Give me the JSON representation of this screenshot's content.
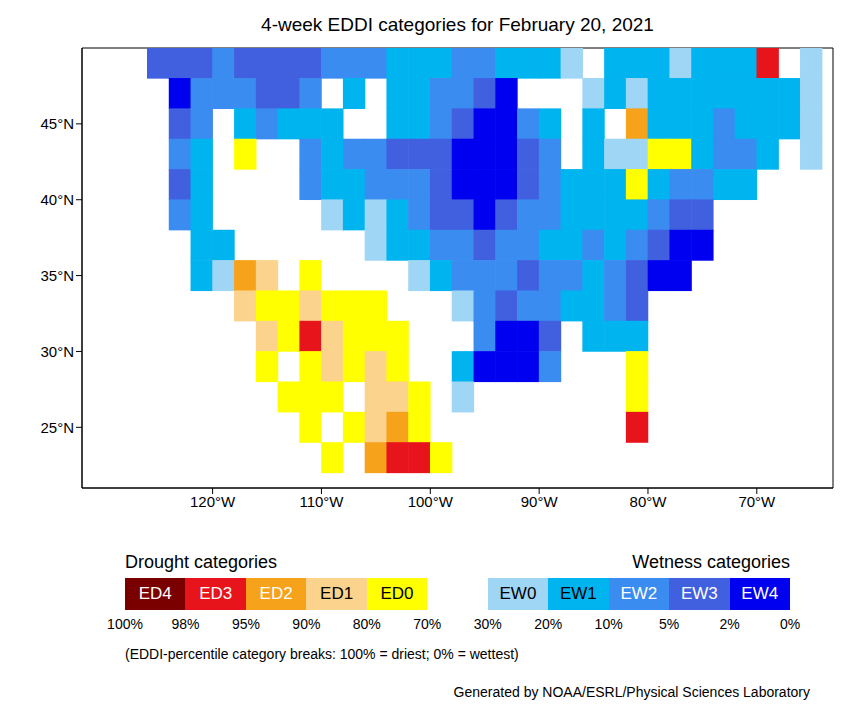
{
  "chart_data": {
    "type": "map",
    "title": "4-week EDDI categories for February 20, 2021",
    "xlim": [
      -132,
      -63
    ],
    "xticks": [
      {
        "value": -120,
        "label": "120°W"
      },
      {
        "value": -110,
        "label": "110°W"
      },
      {
        "value": -100,
        "label": "100°W"
      },
      {
        "value": -90,
        "label": "90°W"
      },
      {
        "value": -80,
        "label": "80°W"
      },
      {
        "value": -70,
        "label": "70°W"
      }
    ],
    "ylim": [
      21,
      50
    ],
    "yticks": [
      {
        "value": 25,
        "label": "25°N"
      },
      {
        "value": 30,
        "label": "30°N"
      },
      {
        "value": 35,
        "label": "35°N"
      },
      {
        "value": 40,
        "label": "40°N"
      },
      {
        "value": 45,
        "label": "45°N"
      }
    ],
    "grid": false,
    "lons": [
      -125,
      -123,
      -121,
      -119,
      -117,
      -115,
      -113,
      -111,
      -109,
      -107,
      -105,
      -103,
      -101,
      -99,
      -97,
      -95,
      -93,
      -91,
      -89,
      -87,
      -85,
      -83,
      -81,
      -79,
      -77,
      -75,
      -73,
      -71,
      -69,
      -67,
      -65
    ],
    "lats": [
      49,
      47,
      45,
      43,
      41,
      39,
      37,
      35,
      33,
      31,
      29,
      27,
      25,
      23
    ],
    "cells": [
      [
        "EW3",
        "EW3",
        "EW3",
        "EW2",
        "EW3",
        "EW3",
        "EW3",
        "EW3",
        "EW2",
        "EW2",
        "EW2",
        "EW1",
        "EW1",
        "EW1",
        "EW2",
        "EW2",
        "EW1",
        "EW1",
        "EW1",
        "EW0",
        null,
        "EW1",
        "EW1",
        "EW1",
        "EW0",
        "EW1",
        "EW1",
        "EW1",
        "ED3",
        null,
        "EW0"
      ],
      [
        null,
        "EW4",
        "EW2",
        "EW2",
        "EW2",
        "EW3",
        "EW3",
        "EW2",
        null,
        "EW1",
        null,
        "EW1",
        "EW1",
        "EW2",
        "EW2",
        "EW3",
        "EW4",
        null,
        null,
        null,
        "EW0",
        "EW1",
        "EW0",
        "EW1",
        "EW1",
        "EW1",
        "EW1",
        "EW1",
        "EW1",
        "EW1",
        "EW0"
      ],
      [
        null,
        "EW3",
        "EW2",
        null,
        "EW1",
        "EW2",
        "EW1",
        "EW1",
        "EW1",
        null,
        null,
        "EW1",
        "EW1",
        "EW2",
        "EW3",
        "EW4",
        "EW4",
        "EW2",
        "EW1",
        null,
        "EW1",
        null,
        "ED2",
        "EW1",
        "EW1",
        "EW1",
        "EW2",
        "EW1",
        "EW1",
        "EW1",
        "EW0"
      ],
      [
        null,
        "EW2",
        "EW1",
        null,
        "ED0",
        null,
        null,
        "EW2",
        "EW1",
        "EW2",
        "EW2",
        "EW3",
        "EW3",
        "EW3",
        "EW4",
        "EW4",
        "EW4",
        "EW3",
        "EW2",
        null,
        "EW1",
        "EW0",
        "EW0",
        "ED0",
        "ED0",
        "EW1",
        "EW2",
        "EW2",
        "EW1",
        null,
        "EW0"
      ],
      [
        null,
        "EW3",
        "EW1",
        null,
        null,
        null,
        null,
        "EW2",
        "EW1",
        "EW1",
        "EW2",
        "EW2",
        "EW2",
        "EW3",
        "EW4",
        "EW4",
        "EW4",
        "EW3",
        "EW2",
        "EW1",
        "EW1",
        "EW1",
        "ED0",
        "EW1",
        "EW2",
        "EW2",
        "EW1",
        "EW1",
        null,
        null,
        null
      ],
      [
        null,
        "EW2",
        "EW1",
        null,
        null,
        null,
        null,
        null,
        "EW0",
        "EW1",
        "EW0",
        "EW1",
        "EW2",
        "EW3",
        "EW3",
        "EW4",
        "EW3",
        "EW2",
        "EW2",
        "EW1",
        "EW1",
        "EW1",
        "EW1",
        "EW2",
        "EW3",
        "EW3",
        null,
        null,
        null,
        null,
        null
      ],
      [
        null,
        null,
        "EW1",
        "EW1",
        null,
        null,
        null,
        null,
        null,
        null,
        "EW0",
        "EW1",
        "EW1",
        "EW2",
        "EW2",
        "EW3",
        "EW2",
        "EW2",
        "EW1",
        "EW1",
        "EW2",
        "EW1",
        "EW2",
        "EW3",
        "EW4",
        "EW4",
        null,
        null,
        null,
        null,
        null
      ],
      [
        null,
        null,
        "EW1",
        "EW0",
        "ED2",
        "ED1",
        null,
        "ED0",
        null,
        null,
        null,
        null,
        "EW0",
        "EW1",
        "EW2",
        "EW2",
        "EW2",
        "EW3",
        "EW2",
        "EW2",
        "EW1",
        "EW2",
        "EW3",
        "EW4",
        "EW4",
        null,
        null,
        null,
        null,
        null,
        null
      ],
      [
        null,
        null,
        null,
        null,
        "ED1",
        "ED0",
        "ED0",
        "ED1",
        "ED0",
        "ED0",
        "ED0",
        null,
        null,
        null,
        "EW0",
        "EW2",
        "EW3",
        "EW2",
        "EW2",
        "EW1",
        "EW1",
        "EW2",
        "EW3",
        null,
        null,
        null,
        null,
        null,
        null,
        null,
        null
      ],
      [
        null,
        null,
        null,
        null,
        null,
        "ED1",
        "ED0",
        "ED3",
        "ED1",
        "ED0",
        "ED0",
        "ED0",
        null,
        null,
        null,
        "EW2",
        "EW4",
        "EW4",
        "EW3",
        null,
        "EW1",
        "EW1",
        "EW1",
        null,
        null,
        null,
        null,
        null,
        null,
        null,
        null
      ],
      [
        null,
        null,
        null,
        null,
        null,
        "ED0",
        null,
        "ED0",
        "ED1",
        "ED0",
        "ED1",
        "ED0",
        null,
        null,
        "EW1",
        "EW4",
        "EW4",
        "EW4",
        "EW2",
        null,
        null,
        null,
        "ED0",
        null,
        null,
        null,
        null,
        null,
        null,
        null,
        null
      ],
      [
        null,
        null,
        null,
        null,
        null,
        null,
        "ED0",
        "ED0",
        "ED0",
        null,
        "ED1",
        "ED1",
        "ED0",
        null,
        "EW0",
        null,
        null,
        null,
        null,
        null,
        null,
        null,
        "ED0",
        null,
        null,
        null,
        null,
        null,
        null,
        null,
        null
      ],
      [
        null,
        null,
        null,
        null,
        null,
        null,
        null,
        "ED0",
        null,
        "ED0",
        "ED1",
        "ED2",
        "ED0",
        null,
        null,
        null,
        null,
        null,
        null,
        null,
        null,
        null,
        "ED3",
        null,
        null,
        null,
        null,
        null,
        null,
        null,
        null
      ],
      [
        null,
        null,
        null,
        null,
        null,
        null,
        null,
        null,
        "ED0",
        null,
        "ED2",
        "ED3",
        "ED3",
        "ED0",
        null,
        null,
        null,
        null,
        null,
        null,
        null,
        null,
        null,
        null,
        null,
        null,
        null,
        null,
        null,
        null,
        null
      ]
    ],
    "color_bar": {
      "left_title": "Drought categories",
      "right_title": "Wetness categories",
      "categories": [
        {
          "label": "ED4",
          "color": "#7a0000"
        },
        {
          "label": "ED3",
          "color": "#e8141c"
        },
        {
          "label": "ED2",
          "color": "#f7a21b"
        },
        {
          "label": "ED1",
          "color": "#fbd38c"
        },
        {
          "label": "ED0",
          "color": "#ffff00"
        },
        {
          "label": null,
          "color": "#ffffff"
        },
        {
          "label": "EW0",
          "color": "#9fd5f5"
        },
        {
          "label": "EW1",
          "color": "#00b4f0"
        },
        {
          "label": "EW2",
          "color": "#3a8cf0"
        },
        {
          "label": "EW3",
          "color": "#4060e0"
        },
        {
          "label": "EW4",
          "color": "#0000f0"
        }
      ],
      "breaks": [
        {
          "value": 100,
          "label": "100%"
        },
        {
          "value": 98,
          "label": "98%"
        },
        {
          "value": 95,
          "label": "95%"
        },
        {
          "value": 90,
          "label": "90%"
        },
        {
          "value": 80,
          "label": "80%"
        },
        {
          "value": 70,
          "label": "70%"
        },
        {
          "value": 30,
          "label": "30%"
        },
        {
          "value": 20,
          "label": "20%"
        },
        {
          "value": 10,
          "label": "10%"
        },
        {
          "value": 5,
          "label": "5%"
        },
        {
          "value": 2,
          "label": "2%"
        },
        {
          "value": 0,
          "label": "0%"
        }
      ]
    },
    "note": "(EDDI-percentile category breaks: 100% = driest; 0% = wettest)",
    "credit": "Generated by NOAA/ESRL/Physical Sciences Laboratory"
  }
}
